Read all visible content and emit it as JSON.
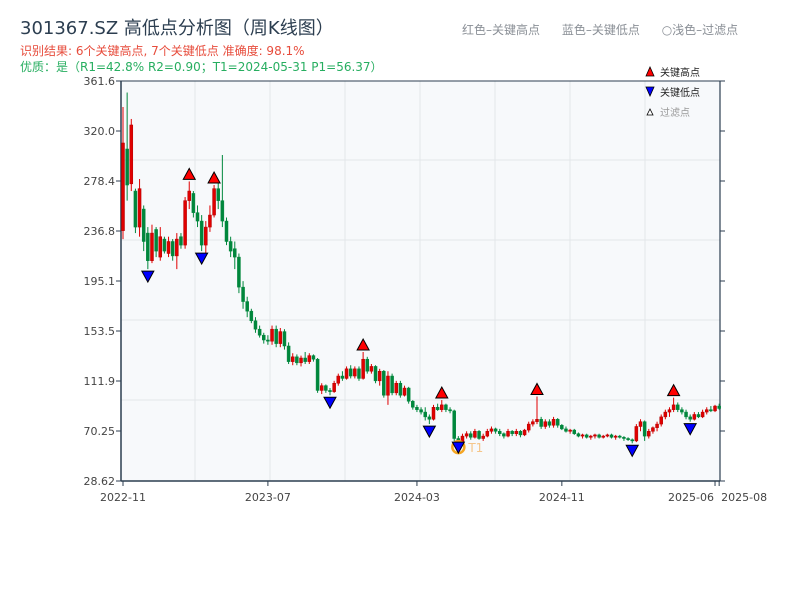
{
  "header": {
    "title": "301367.SZ 高低点分析图（周K线图）",
    "result_line": "识别结果: 6个关键高点, 7个关键低点  准确度: 98.1%",
    "quality_line": "优质：是（R1=42.8%  R2=0.90；T1=2024-05-31 P1=56.37）",
    "legend_top": [
      "红色–关键高点",
      "蓝色–关键低点",
      "○浅色–过滤点"
    ]
  },
  "colors": {
    "up": "#e00000",
    "down": "#00873c",
    "high_marker": "#ff0000",
    "low_marker": "#0000ff",
    "t1_circle": "#f5a623",
    "axis": "#2c3e50",
    "grid": "#e3e6ea",
    "plot_bg": "#f7f9fb"
  },
  "chart_data": {
    "type": "candlestick",
    "title": "301367.SZ 高低点分析图（周K线图）",
    "ylim": [
      28.62,
      361.6
    ],
    "y_ticks": [
      "361.6",
      "320.0",
      "278.4",
      "236.8",
      "195.1",
      "153.5",
      "111.9",
      "70.25",
      "28.62"
    ],
    "x_ticks": [
      "2022-11",
      "2023-07",
      "2024-03",
      "2024-11",
      "2025-06",
      "2025-08"
    ],
    "x_tick_weeks": [
      0,
      35,
      71,
      106,
      143,
      144
    ],
    "grid": true,
    "legend": {
      "position": "top-right",
      "items": [
        "关键高点",
        "关键低点",
        "过滤点"
      ]
    },
    "ohlc": [
      [
        237,
        340,
        230,
        310
      ],
      [
        305,
        352,
        262,
        275
      ],
      [
        276,
        330,
        270,
        325
      ],
      [
        270,
        272,
        235,
        240
      ],
      [
        240,
        280,
        232,
        272
      ],
      [
        255,
        258,
        220,
        228
      ],
      [
        235,
        240,
        205,
        212
      ],
      [
        212,
        242,
        210,
        235
      ],
      [
        238,
        240,
        215,
        220
      ],
      [
        215,
        240,
        212,
        232
      ],
      [
        230,
        232,
        218,
        220
      ],
      [
        218,
        232,
        215,
        228
      ],
      [
        228,
        230,
        212,
        216
      ],
      [
        216,
        235,
        205,
        230
      ],
      [
        232,
        235,
        222,
        225
      ],
      [
        225,
        265,
        222,
        262
      ],
      [
        262,
        278,
        255,
        270
      ],
      [
        268,
        270,
        248,
        252
      ],
      [
        252,
        258,
        240,
        245
      ],
      [
        245,
        250,
        220,
        225
      ],
      [
        225,
        245,
        218,
        240
      ],
      [
        240,
        258,
        236,
        250
      ],
      [
        250,
        275,
        248,
        272
      ],
      [
        272,
        278,
        255,
        262
      ],
      [
        262,
        300,
        240,
        245
      ],
      [
        245,
        248,
        225,
        228
      ],
      [
        228,
        232,
        215,
        220
      ],
      [
        222,
        228,
        205,
        215
      ],
      [
        215,
        218,
        185,
        190
      ],
      [
        190,
        195,
        172,
        178
      ],
      [
        178,
        182,
        165,
        170
      ],
      [
        170,
        172,
        160,
        162
      ],
      [
        162,
        165,
        152,
        155
      ],
      [
        155,
        158,
        148,
        150
      ],
      [
        150,
        152,
        143,
        146
      ],
      [
        146,
        150,
        142,
        145
      ],
      [
        145,
        158,
        142,
        155
      ],
      [
        155,
        158,
        140,
        143
      ],
      [
        143,
        156,
        140,
        153
      ],
      [
        153,
        155,
        138,
        141
      ],
      [
        141,
        144,
        126,
        128
      ],
      [
        128,
        135,
        125,
        132
      ],
      [
        132,
        134,
        125,
        127
      ],
      [
        127,
        133,
        124,
        131
      ],
      [
        131,
        136,
        126,
        128
      ],
      [
        128,
        135,
        126,
        133
      ],
      [
        133,
        134,
        128,
        130
      ],
      [
        130,
        131,
        102,
        104
      ],
      [
        104,
        110,
        101,
        108
      ],
      [
        108,
        109,
        102,
        104
      ],
      [
        104,
        106,
        100,
        103
      ],
      [
        103,
        112,
        102,
        110
      ],
      [
        110,
        118,
        108,
        116
      ],
      [
        116,
        120,
        112,
        114
      ],
      [
        114,
        124,
        113,
        122
      ],
      [
        122,
        125,
        114,
        116
      ],
      [
        116,
        124,
        114,
        122
      ],
      [
        122,
        124,
        112,
        114
      ],
      [
        114,
        136,
        113,
        130
      ],
      [
        130,
        132,
        118,
        120
      ],
      [
        120,
        126,
        118,
        124
      ],
      [
        124,
        125,
        110,
        112
      ],
      [
        112,
        122,
        108,
        120
      ],
      [
        120,
        121,
        98,
        100
      ],
      [
        100,
        120,
        92,
        116
      ],
      [
        116,
        118,
        100,
        102
      ],
      [
        102,
        112,
        100,
        110
      ],
      [
        110,
        112,
        98,
        100
      ],
      [
        100,
        108,
        99,
        106
      ],
      [
        106,
        107,
        93,
        95
      ],
      [
        95,
        96,
        88,
        90
      ],
      [
        90,
        92,
        86,
        88
      ],
      [
        88,
        90,
        84,
        86
      ],
      [
        86,
        90,
        79,
        82
      ],
      [
        82,
        84,
        76,
        80
      ],
      [
        80,
        92,
        79,
        90
      ],
      [
        90,
        93,
        87,
        88
      ],
      [
        88,
        96,
        86,
        92
      ],
      [
        92,
        93,
        86,
        88
      ],
      [
        88,
        90,
        85,
        87
      ],
      [
        87,
        88,
        62,
        64
      ],
      [
        64,
        66,
        56,
        60
      ],
      [
        60,
        68,
        59,
        66
      ],
      [
        66,
        70,
        64,
        68
      ],
      [
        68,
        70,
        63,
        65
      ],
      [
        65,
        72,
        64,
        70
      ],
      [
        70,
        71,
        63,
        64
      ],
      [
        64,
        68,
        62,
        66
      ],
      [
        66,
        72,
        65,
        70
      ],
      [
        70,
        74,
        68,
        72
      ],
      [
        72,
        73,
        68,
        70
      ],
      [
        70,
        72,
        66,
        68
      ],
      [
        68,
        69,
        64,
        66
      ],
      [
        66,
        72,
        65,
        70
      ],
      [
        70,
        71,
        66,
        68
      ],
      [
        68,
        72,
        66,
        70
      ],
      [
        70,
        71,
        65,
        67
      ],
      [
        67,
        72,
        66,
        71
      ],
      [
        71,
        78,
        69,
        76
      ],
      [
        76,
        80,
        74,
        78
      ],
      [
        78,
        99,
        76,
        80
      ],
      [
        80,
        82,
        72,
        74
      ],
      [
        74,
        80,
        72,
        78
      ],
      [
        78,
        80,
        73,
        75
      ],
      [
        75,
        82,
        73,
        80
      ],
      [
        80,
        81,
        73,
        75
      ],
      [
        75,
        76,
        71,
        72
      ],
      [
        72,
        74,
        69,
        70
      ],
      [
        70,
        72,
        68,
        71
      ],
      [
        71,
        72,
        67,
        68
      ],
      [
        68,
        69,
        65,
        66
      ],
      [
        66,
        68,
        64,
        67
      ],
      [
        67,
        68,
        64,
        65
      ],
      [
        65,
        67,
        63,
        66
      ],
      [
        66,
        68,
        64,
        67
      ],
      [
        67,
        68,
        64,
        65
      ],
      [
        65,
        67,
        64,
        66
      ],
      [
        66,
        68,
        65,
        67
      ],
      [
        67,
        68,
        64,
        65
      ],
      [
        65,
        67,
        63,
        66
      ],
      [
        66,
        67,
        64,
        65
      ],
      [
        65,
        66,
        62,
        64
      ],
      [
        64,
        65,
        62,
        63
      ],
      [
        63,
        64,
        60,
        62
      ],
      [
        62,
        76,
        61,
        74
      ],
      [
        74,
        80,
        70,
        78
      ],
      [
        78,
        79,
        62,
        66
      ],
      [
        66,
        72,
        64,
        70
      ],
      [
        70,
        74,
        68,
        73
      ],
      [
        73,
        78,
        70,
        76
      ],
      [
        76,
        84,
        74,
        82
      ],
      [
        82,
        88,
        80,
        86
      ],
      [
        86,
        90,
        82,
        88
      ],
      [
        88,
        98,
        86,
        92
      ],
      [
        92,
        94,
        86,
        88
      ],
      [
        88,
        90,
        84,
        86
      ],
      [
        86,
        88,
        80,
        82
      ],
      [
        82,
        84,
        78,
        80
      ],
      [
        80,
        86,
        79,
        84
      ],
      [
        84,
        86,
        81,
        82
      ],
      [
        82,
        88,
        81,
        86
      ],
      [
        86,
        90,
        84,
        88
      ],
      [
        88,
        91,
        86,
        87
      ],
      [
        87,
        92,
        86,
        91
      ],
      [
        91,
        93,
        88,
        89
      ]
    ],
    "key_highs": [
      16,
      22,
      58,
      77,
      100,
      133
    ],
    "key_lows": [
      6,
      19,
      50,
      74,
      81,
      123,
      137
    ],
    "t1": {
      "index": 81,
      "label": "T1",
      "date": "2024-05-31",
      "price": 56.37
    }
  }
}
